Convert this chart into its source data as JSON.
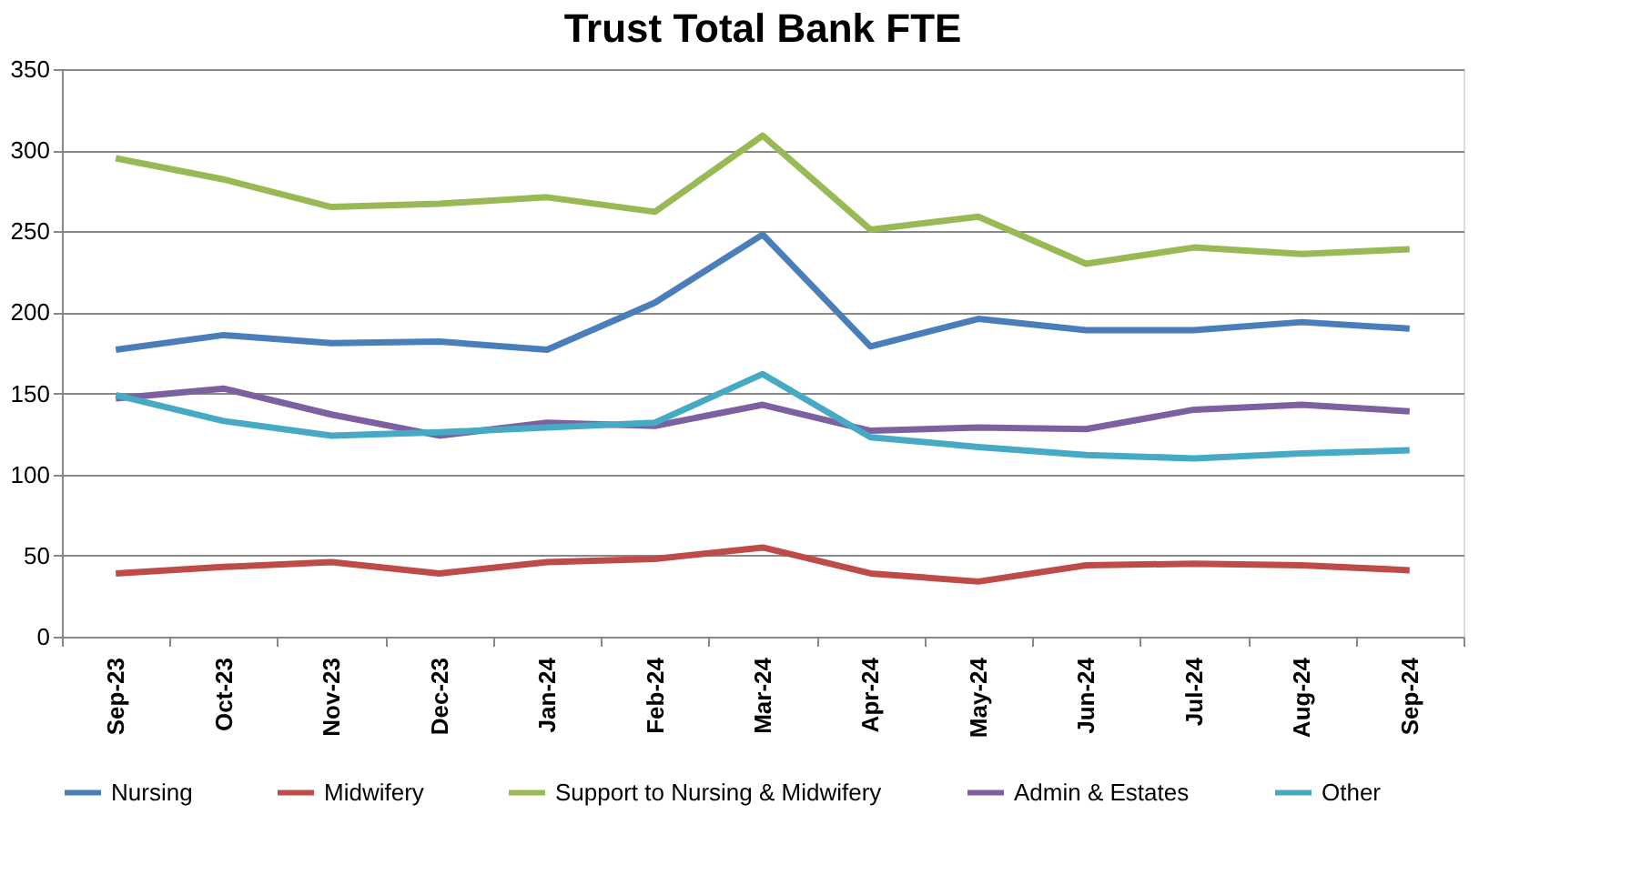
{
  "chart_data": {
    "type": "line",
    "title": "Trust Total Bank FTE",
    "categories": [
      "Sep-23",
      "Oct-23",
      "Nov-23",
      "Dec-23",
      "Jan-24",
      "Feb-24",
      "Mar-24",
      "Apr-24",
      "May-24",
      "Jun-24",
      "Jul-24",
      "Aug-24",
      "Sep-24"
    ],
    "series": [
      {
        "name": "Nursing",
        "color": "#4a7ebb",
        "values": [
          177,
          186,
          181,
          182,
          177,
          206,
          248,
          179,
          196,
          189,
          189,
          194,
          190
        ]
      },
      {
        "name": "Midwifery",
        "color": "#be4b48",
        "values": [
          39,
          43,
          46,
          39,
          46,
          48,
          55,
          39,
          34,
          44,
          45,
          44,
          41
        ]
      },
      {
        "name": "Support to Nursing & Midwifery",
        "color": "#98b954",
        "values": [
          295,
          282,
          265,
          267,
          271,
          262,
          309,
          251,
          259,
          230,
          240,
          236,
          239
        ]
      },
      {
        "name": "Admin & Estates",
        "color": "#7d60a0",
        "values": [
          147,
          153,
          137,
          124,
          132,
          130,
          143,
          127,
          129,
          128,
          140,
          143,
          139
        ]
      },
      {
        "name": "Other",
        "color": "#46aac5",
        "values": [
          149,
          133,
          124,
          126,
          129,
          132,
          162,
          123,
          117,
          112,
          110,
          113,
          115
        ]
      }
    ],
    "ylim": [
      0,
      350
    ],
    "yticks": [
      0,
      50,
      100,
      150,
      200,
      250,
      300,
      350
    ],
    "grid": "y",
    "legend": "bottom",
    "marker": "none",
    "line_style": "solid"
  }
}
